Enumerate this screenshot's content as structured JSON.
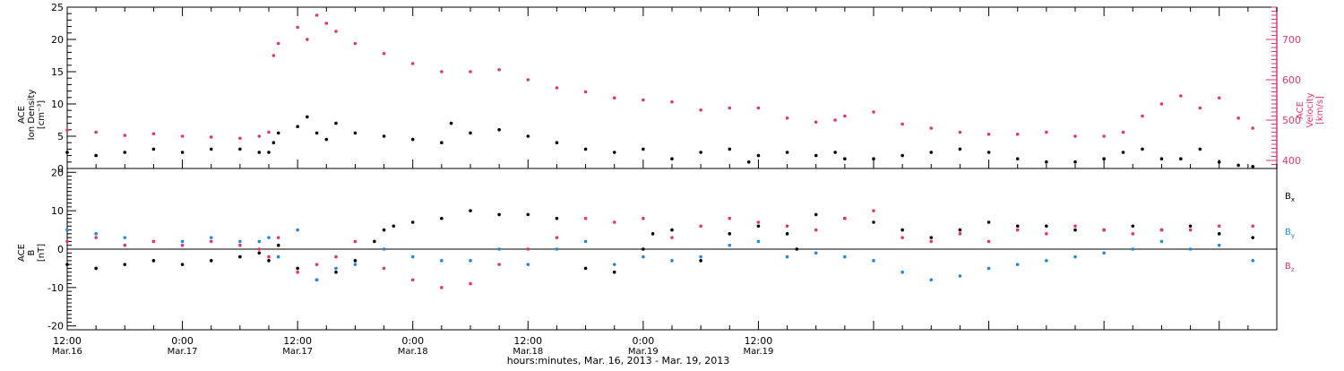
{
  "colors": {
    "black": "#000000",
    "velocity": "#e8336a",
    "by": "#1e88e5",
    "bz": "#e8336a",
    "frame": "#000000"
  },
  "chart_data": [
    {
      "type": "scatter",
      "panel": "top",
      "ylabel_lines": [
        "ACE",
        "Ion Density",
        "[cm⁻³]"
      ],
      "y2label_lines": [
        "ACE",
        "Velocity",
        "[km/s]"
      ],
      "ylim": [
        0,
        25
      ],
      "y2lim": [
        380,
        780
      ],
      "yticks": [
        0,
        5,
        10,
        15,
        20,
        25
      ],
      "y2ticks": [
        400,
        500,
        600,
        700
      ],
      "grid": false,
      "series": [
        {
          "key": "density",
          "axis": "left",
          "color": "#000000",
          "x_hours": [
            0,
            3,
            6,
            9,
            12,
            15,
            18,
            20,
            21,
            21.5,
            22,
            24,
            25,
            26,
            27,
            28,
            30,
            33,
            36,
            39,
            40,
            42,
            45,
            48,
            51,
            54,
            57,
            60,
            63,
            66,
            69,
            71,
            72,
            75,
            78,
            80,
            81,
            84,
            87,
            90,
            93,
            96,
            99,
            102,
            105,
            108,
            110,
            112,
            114,
            116,
            118,
            120,
            122,
            123.5
          ],
          "values": [
            2.5,
            2.0,
            2.5,
            3.0,
            2.5,
            3.0,
            3.0,
            2.5,
            2.5,
            4.0,
            5.5,
            6.5,
            8.0,
            5.5,
            4.5,
            7.0,
            5.5,
            5.0,
            4.5,
            4.0,
            7.0,
            5.5,
            6.0,
            5.0,
            4.0,
            3.0,
            2.5,
            3.0,
            1.5,
            2.5,
            3.0,
            1.0,
            2.0,
            2.5,
            2.0,
            2.5,
            1.5,
            1.5,
            2.0,
            2.5,
            3.0,
            2.5,
            1.5,
            1.0,
            1.0,
            1.5,
            2.5,
            3.0,
            1.5,
            1.5,
            3.0,
            1.0,
            0.5,
            0.3
          ]
        },
        {
          "key": "velocity",
          "axis": "right",
          "color": "#e8336a",
          "x_hours": [
            0,
            3,
            6,
            9,
            12,
            15,
            18,
            20,
            21,
            21.5,
            22,
            24,
            25,
            26,
            27,
            28,
            30,
            33,
            36,
            39,
            42,
            45,
            48,
            51,
            54,
            57,
            60,
            63,
            66,
            69,
            72,
            75,
            78,
            80,
            81,
            84,
            87,
            90,
            93,
            96,
            99,
            102,
            105,
            108,
            110,
            112,
            114,
            116,
            118,
            120,
            122,
            123.5
          ],
          "values": [
            475,
            470,
            462,
            466,
            460,
            458,
            455,
            460,
            470,
            660,
            690,
            730,
            700,
            760,
            740,
            720,
            690,
            665,
            640,
            620,
            620,
            625,
            600,
            580,
            570,
            555,
            550,
            545,
            525,
            530,
            530,
            505,
            495,
            500,
            510,
            520,
            490,
            480,
            470,
            465,
            465,
            470,
            460,
            460,
            470,
            510,
            540,
            560,
            530,
            555,
            505,
            480
          ]
        }
      ]
    },
    {
      "type": "scatter",
      "panel": "bottom",
      "ylabel_lines": [
        "ACE",
        "B",
        "[nT]"
      ],
      "ylim": [
        -21,
        21
      ],
      "yticks": [
        -20,
        -10,
        0,
        10,
        20
      ],
      "grid": false,
      "zero_line": true,
      "legend_placement": "right",
      "series": [
        {
          "key": "bx",
          "name": "B",
          "subscript": "x",
          "color": "#000000",
          "x_hours": [
            0,
            3,
            6,
            9,
            12,
            15,
            18,
            20,
            21,
            22,
            24,
            26,
            28,
            30,
            32,
            33,
            34,
            36,
            39,
            42,
            45,
            48,
            51,
            54,
            57,
            60,
            61,
            63,
            66,
            69,
            72,
            75,
            76,
            78,
            81,
            84,
            87,
            90,
            93,
            96,
            99,
            102,
            105,
            108,
            111,
            114,
            117,
            120,
            123.5
          ],
          "values": [
            -4,
            -5,
            -4,
            -3,
            -4,
            -3,
            -2,
            -1,
            -3,
            1,
            -5,
            -8,
            -6,
            -3,
            2,
            5,
            6,
            7,
            8,
            10,
            9,
            9,
            8,
            -5,
            -6,
            0,
            4,
            5,
            -3,
            4,
            6,
            4,
            0,
            9,
            8,
            7,
            5,
            3,
            5,
            7,
            6,
            6,
            5,
            5,
            6,
            5,
            6,
            4,
            3
          ]
        },
        {
          "key": "by",
          "name": "B",
          "subscript": "y",
          "color": "#1e88e5",
          "x_hours": [
            0,
            3,
            6,
            9,
            12,
            15,
            18,
            20,
            21,
            22,
            24,
            26,
            28,
            30,
            33,
            36,
            39,
            42,
            45,
            48,
            51,
            54,
            57,
            60,
            63,
            66,
            69,
            72,
            75,
            78,
            81,
            84,
            87,
            90,
            93,
            96,
            99,
            102,
            105,
            108,
            111,
            114,
            117,
            120,
            123.5
          ],
          "values": [
            5,
            4,
            3,
            2,
            2,
            3,
            2,
            2,
            3,
            -2,
            5,
            -8,
            -5,
            -4,
            0,
            -2,
            -3,
            -3,
            0,
            -4,
            0,
            2,
            -4,
            -2,
            -3,
            -2,
            1,
            2,
            -2,
            -1,
            -2,
            -3,
            -6,
            -8,
            -7,
            -5,
            -4,
            -3,
            -2,
            -1,
            0,
            2,
            0,
            1,
            -3
          ]
        },
        {
          "key": "bz",
          "name": "B",
          "subscript": "z",
          "color": "#e8336a",
          "x_hours": [
            0,
            3,
            6,
            9,
            12,
            15,
            18,
            20,
            21,
            22,
            24,
            26,
            28,
            30,
            33,
            36,
            39,
            42,
            45,
            48,
            51,
            54,
            57,
            60,
            63,
            66,
            69,
            72,
            75,
            78,
            81,
            84,
            87,
            90,
            93,
            96,
            99,
            102,
            105,
            108,
            111,
            114,
            117,
            120,
            123.5
          ],
          "values": [
            2,
            3,
            1,
            2,
            1,
            2,
            1,
            0,
            -2,
            3,
            -6,
            -4,
            -2,
            2,
            -5,
            -8,
            -10,
            -9,
            -4,
            0,
            3,
            8,
            7,
            8,
            3,
            6,
            8,
            7,
            6,
            5,
            8,
            10,
            3,
            2,
            4,
            2,
            5,
            4,
            6,
            5,
            4,
            5,
            5,
            6,
            6
          ]
        }
      ]
    }
  ],
  "x_axis": {
    "range_hours": [
      0,
      126
    ],
    "ticks": [
      {
        "h": 0,
        "time": "12:00",
        "date": "Mar.16"
      },
      {
        "h": 12,
        "time": "0:00",
        "date": "Mar.17"
      },
      {
        "h": 24,
        "time": "12:00",
        "date": "Mar.17"
      },
      {
        "h": 36,
        "time": "0:00",
        "date": "Mar.18"
      },
      {
        "h": 48,
        "time": "12:00",
        "date": "Mar.18"
      },
      {
        "h": 60,
        "time": "0:00",
        "date": "Mar.19"
      },
      {
        "h": 72,
        "time": "12:00",
        "date": "Mar.19"
      }
    ],
    "label": "hours:minutes, Mar. 16, 2013 - Mar. 19, 2013"
  }
}
